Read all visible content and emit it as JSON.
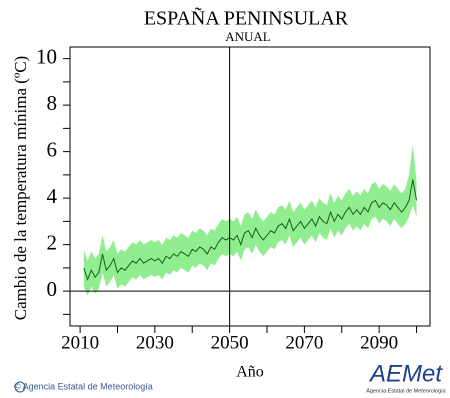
{
  "chart_data": {
    "type": "band-line",
    "title": "ESPAÑA PENINSULAR",
    "subtitle": "ANUAL",
    "ylabel": "Cambio de la temperatura mínima (ºC)",
    "xlabel": "Año",
    "xlim": [
      2007.3,
      2103.6
    ],
    "ylim": [
      -1.5,
      10.5
    ],
    "xticks": [
      2010,
      2030,
      2050,
      2070,
      2090
    ],
    "xminor_ticks": [
      2020,
      2040,
      2060,
      2080,
      2100
    ],
    "yticks": [
      0,
      2,
      4,
      6,
      8,
      10
    ],
    "yminor_ticks": [
      -1,
      1,
      3,
      5,
      7,
      9
    ],
    "vline": 2050,
    "hline": 0,
    "x": [
      2011,
      2012,
      2013,
      2014,
      2015,
      2016,
      2017,
      2018,
      2019,
      2020,
      2021,
      2022,
      2023,
      2024,
      2025,
      2026,
      2027,
      2028,
      2029,
      2030,
      2031,
      2032,
      2033,
      2034,
      2035,
      2036,
      2037,
      2038,
      2039,
      2040,
      2041,
      2042,
      2043,
      2044,
      2045,
      2046,
      2047,
      2048,
      2049,
      2050,
      2051,
      2052,
      2053,
      2054,
      2055,
      2056,
      2057,
      2058,
      2059,
      2060,
      2061,
      2062,
      2063,
      2064,
      2065,
      2066,
      2067,
      2068,
      2069,
      2070,
      2071,
      2072,
      2073,
      2074,
      2075,
      2076,
      2077,
      2078,
      2079,
      2080,
      2081,
      2082,
      2083,
      2084,
      2085,
      2086,
      2087,
      2088,
      2089,
      2090,
      2091,
      2092,
      2093,
      2094,
      2095,
      2096,
      2097,
      2098,
      2099,
      2100
    ],
    "series": [
      {
        "type": "band",
        "color": "#90ee90",
        "lower": [
          0.2,
          -0.2,
          0.2,
          -0.1,
          0.1,
          0.8,
          0.2,
          0.4,
          0.7,
          0.1,
          0.3,
          0.2,
          0.4,
          0.6,
          0.5,
          0.7,
          0.5,
          0.6,
          0.7,
          0.6,
          0.7,
          0.5,
          0.8,
          0.7,
          0.9,
          0.8,
          1.0,
          0.9,
          0.8,
          1.1,
          1.0,
          1.2,
          1.1,
          0.9,
          1.2,
          1.1,
          1.4,
          1.6,
          1.5,
          1.6,
          1.5,
          1.7,
          1.3,
          1.8,
          1.9,
          1.6,
          2.0,
          1.7,
          1.5,
          1.7,
          1.9,
          1.8,
          2.1,
          2.2,
          2.0,
          2.4,
          1.9,
          2.1,
          2.3,
          2.0,
          2.2,
          2.4,
          2.1,
          2.5,
          2.3,
          2.2,
          2.7,
          2.3,
          2.6,
          2.4,
          2.7,
          2.9,
          2.6,
          2.8,
          2.6,
          2.9,
          2.7,
          3.1,
          3.2,
          2.9,
          3.1,
          3.0,
          2.8,
          3.1,
          2.9,
          2.7,
          2.9,
          3.2,
          3.7,
          3.2
        ],
        "upper": [
          1.8,
          1.3,
          1.7,
          1.4,
          1.6,
          2.4,
          1.7,
          1.9,
          2.2,
          1.6,
          1.8,
          1.7,
          1.9,
          2.1,
          2.0,
          2.2,
          2.0,
          2.1,
          2.2,
          2.1,
          2.2,
          2.0,
          2.3,
          2.2,
          2.4,
          2.3,
          2.5,
          2.4,
          2.3,
          2.6,
          2.5,
          2.7,
          2.6,
          2.4,
          2.7,
          2.6,
          2.9,
          3.1,
          3.0,
          3.1,
          3.0,
          3.2,
          2.8,
          3.3,
          3.4,
          3.1,
          3.5,
          3.2,
          3.0,
          3.2,
          3.4,
          3.3,
          3.6,
          3.7,
          3.5,
          3.9,
          3.4,
          3.6,
          3.8,
          3.5,
          3.7,
          3.9,
          3.6,
          4.0,
          3.8,
          3.7,
          4.2,
          3.8,
          4.1,
          3.9,
          4.2,
          4.4,
          4.1,
          4.3,
          4.1,
          4.4,
          4.2,
          4.6,
          4.7,
          4.4,
          4.6,
          4.5,
          4.3,
          4.6,
          4.4,
          4.2,
          4.4,
          5.0,
          6.3,
          4.7
        ]
      },
      {
        "type": "line",
        "color": "#1a5e1a",
        "values": [
          1.0,
          0.5,
          0.9,
          0.6,
          0.8,
          1.6,
          0.9,
          1.1,
          1.4,
          0.8,
          1.0,
          0.9,
          1.1,
          1.3,
          1.2,
          1.4,
          1.2,
          1.3,
          1.4,
          1.3,
          1.4,
          1.2,
          1.5,
          1.4,
          1.6,
          1.5,
          1.7,
          1.6,
          1.5,
          1.8,
          1.7,
          1.9,
          1.8,
          1.6,
          1.9,
          1.8,
          2.1,
          2.3,
          2.2,
          2.3,
          2.2,
          2.4,
          2.0,
          2.5,
          2.6,
          2.3,
          2.7,
          2.4,
          2.2,
          2.4,
          2.6,
          2.5,
          2.8,
          2.9,
          2.7,
          3.1,
          2.6,
          2.8,
          3.0,
          2.7,
          2.9,
          3.1,
          2.8,
          3.2,
          3.0,
          2.9,
          3.4,
          3.0,
          3.3,
          3.1,
          3.4,
          3.6,
          3.3,
          3.5,
          3.3,
          3.6,
          3.4,
          3.8,
          3.9,
          3.6,
          3.8,
          3.7,
          3.5,
          3.8,
          3.6,
          3.4,
          3.6,
          3.9,
          4.8,
          3.9
        ]
      }
    ]
  },
  "footer": {
    "credit": "© Agencia Estatal de Meteorología",
    "logo": "AEMet",
    "logo_subtitle": "Agencia Estatal de Meteorología"
  }
}
